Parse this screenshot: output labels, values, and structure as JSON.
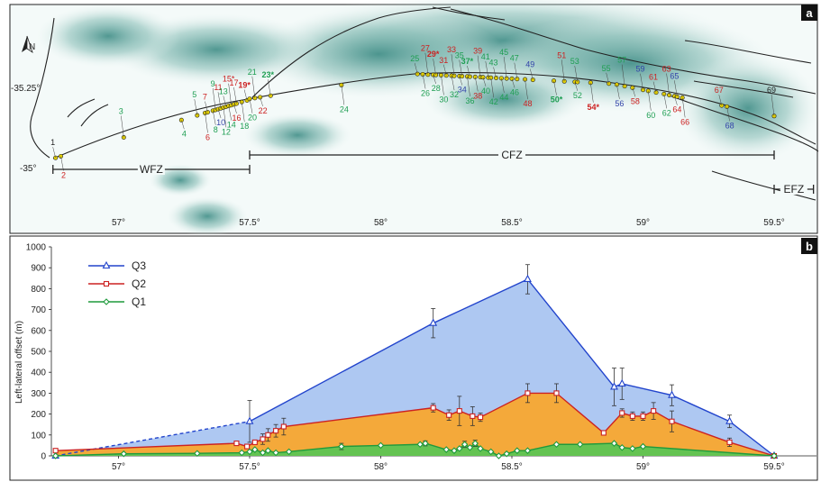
{
  "panel_a": {
    "label": "a",
    "lat_labels": [
      "-35.25°",
      "-35°"
    ],
    "lon_labels": [
      "57°",
      "57.5°",
      "58°",
      "58.5°",
      "59°",
      "59.5°"
    ],
    "zones": [
      {
        "name": "WFZ",
        "from": 56.75,
        "to": 57.5
      },
      {
        "name": "CFZ",
        "from": 57.5,
        "to": 59.5
      },
      {
        "name": "EFZ",
        "from": 59.5,
        "to": 59.65
      }
    ],
    "north_label": "N",
    "colors": {
      "green": "#1e9e52",
      "red": "#cc2222",
      "blue": "#3344aa",
      "dark": "#222222"
    },
    "site_labels": [
      {
        "t": "1",
        "c": "dark"
      },
      {
        "t": "2",
        "c": "red"
      },
      {
        "t": "3",
        "c": "green"
      },
      {
        "t": "4",
        "c": "green"
      },
      {
        "t": "5",
        "c": "green"
      },
      {
        "t": "6",
        "c": "red"
      },
      {
        "t": "7",
        "c": "red"
      },
      {
        "t": "8",
        "c": "green"
      },
      {
        "t": "9",
        "c": "green"
      },
      {
        "t": "10",
        "c": "blue"
      },
      {
        "t": "11",
        "c": "red"
      },
      {
        "t": "12",
        "c": "green"
      },
      {
        "t": "13",
        "c": "green"
      },
      {
        "t": "14",
        "c": "green"
      },
      {
        "t": "15*",
        "c": "red"
      },
      {
        "t": "16",
        "c": "red"
      },
      {
        "t": "17",
        "c": "red"
      },
      {
        "t": "18",
        "c": "green"
      },
      {
        "t": "19*",
        "c": "red",
        "b": true
      },
      {
        "t": "20",
        "c": "green"
      },
      {
        "t": "21",
        "c": "green"
      },
      {
        "t": "22",
        "c": "red"
      },
      {
        "t": "23*",
        "c": "green",
        "b": true
      },
      {
        "t": "24",
        "c": "green"
      },
      {
        "t": "25",
        "c": "green"
      },
      {
        "t": "26",
        "c": "green"
      },
      {
        "t": "27",
        "c": "red"
      },
      {
        "t": "28",
        "c": "green"
      },
      {
        "t": "29*",
        "c": "red",
        "b": true
      },
      {
        "t": "30",
        "c": "green"
      },
      {
        "t": "31",
        "c": "red"
      },
      {
        "t": "32",
        "c": "green"
      },
      {
        "t": "33",
        "c": "red"
      },
      {
        "t": "34",
        "c": "blue"
      },
      {
        "t": "35",
        "c": "green"
      },
      {
        "t": "36",
        "c": "green"
      },
      {
        "t": "37*",
        "c": "green",
        "b": true
      },
      {
        "t": "38",
        "c": "red"
      },
      {
        "t": "39",
        "c": "red"
      },
      {
        "t": "40",
        "c": "green"
      },
      {
        "t": "41",
        "c": "green"
      },
      {
        "t": "42",
        "c": "green"
      },
      {
        "t": "43",
        "c": "green"
      },
      {
        "t": "44",
        "c": "green"
      },
      {
        "t": "45",
        "c": "green"
      },
      {
        "t": "46",
        "c": "green"
      },
      {
        "t": "47",
        "c": "green"
      },
      {
        "t": "48",
        "c": "red"
      },
      {
        "t": "49",
        "c": "blue"
      },
      {
        "t": "50*",
        "c": "green",
        "b": true
      },
      {
        "t": "51",
        "c": "red"
      },
      {
        "t": "52",
        "c": "green"
      },
      {
        "t": "53",
        "c": "green"
      },
      {
        "t": "54*",
        "c": "red",
        "b": true
      },
      {
        "t": "55",
        "c": "green"
      },
      {
        "t": "56",
        "c": "blue"
      },
      {
        "t": "57",
        "c": "green"
      },
      {
        "t": "58",
        "c": "red"
      },
      {
        "t": "59",
        "c": "blue"
      },
      {
        "t": "60",
        "c": "green"
      },
      {
        "t": "61",
        "c": "red"
      },
      {
        "t": "62",
        "c": "green"
      },
      {
        "t": "63",
        "c": "red"
      },
      {
        "t": "64",
        "c": "red"
      },
      {
        "t": "65",
        "c": "blue"
      },
      {
        "t": "66",
        "c": "red"
      },
      {
        "t": "67",
        "c": "red"
      },
      {
        "t": "68",
        "c": "blue"
      },
      {
        "t": "69",
        "c": "dark"
      }
    ]
  },
  "chart_data": {
    "type": "area",
    "panel_label": "b",
    "ylabel": "Left-lateral offset (m)",
    "xlabel": "",
    "xlim": [
      56.75,
      59.65
    ],
    "ylim": [
      0,
      1000
    ],
    "x_ticks": [
      57,
      57.5,
      58,
      58.5,
      59,
      59.5
    ],
    "x_tick_labels": [
      "57°",
      "57.5°",
      "58°",
      "58.5°",
      "59°",
      "59.5°"
    ],
    "y_ticks": [
      0,
      100,
      200,
      300,
      400,
      500,
      600,
      700,
      800,
      900,
      1000
    ],
    "legend_position": "top-left",
    "series": [
      {
        "name": "Q3",
        "color": "#2244cc",
        "fill": "#aec8f2",
        "marker": "triangle",
        "points": [
          {
            "x": 56.76,
            "y": 0
          },
          {
            "x": 57.5,
            "y": 165,
            "e": 100,
            "dashed_before": true
          },
          {
            "x": 58.2,
            "y": 635,
            "e": 70
          },
          {
            "x": 58.56,
            "y": 845,
            "e": 70
          },
          {
            "x": 58.89,
            "y": 330,
            "e": 90
          },
          {
            "x": 58.92,
            "y": 345,
            "e": 75
          },
          {
            "x": 59.11,
            "y": 290,
            "e": 50
          },
          {
            "x": 59.33,
            "y": 165,
            "e": 30
          },
          {
            "x": 59.5,
            "y": 0
          }
        ]
      },
      {
        "name": "Q2",
        "color": "#cc2222",
        "fill": "#f4a93a",
        "marker": "square",
        "points": [
          {
            "x": 56.76,
            "y": 25
          },
          {
            "x": 57.45,
            "y": 60
          },
          {
            "x": 57.49,
            "y": 45
          },
          {
            "x": 57.52,
            "y": 65
          },
          {
            "x": 57.55,
            "y": 80,
            "e": 25
          },
          {
            "x": 57.57,
            "y": 100,
            "e": 30
          },
          {
            "x": 57.6,
            "y": 120,
            "e": 30
          },
          {
            "x": 57.63,
            "y": 140,
            "e": 40
          },
          {
            "x": 58.2,
            "y": 230,
            "e": 20
          },
          {
            "x": 58.26,
            "y": 195,
            "e": 25
          },
          {
            "x": 58.3,
            "y": 215,
            "e": 70
          },
          {
            "x": 58.35,
            "y": 190,
            "e": 45
          },
          {
            "x": 58.38,
            "y": 185,
            "e": 20
          },
          {
            "x": 58.56,
            "y": 300,
            "e": 45
          },
          {
            "x": 58.67,
            "y": 300,
            "e": 45
          },
          {
            "x": 58.85,
            "y": 110
          },
          {
            "x": 58.92,
            "y": 205,
            "e": 20
          },
          {
            "x": 58.96,
            "y": 190,
            "e": 20
          },
          {
            "x": 59.0,
            "y": 190,
            "e": 20
          },
          {
            "x": 59.04,
            "y": 215,
            "e": 40
          },
          {
            "x": 59.11,
            "y": 165,
            "e": 50
          },
          {
            "x": 59.33,
            "y": 65,
            "e": 20
          },
          {
            "x": 59.5,
            "y": 0
          }
        ]
      },
      {
        "name": "Q1",
        "color": "#1f9a3c",
        "fill": "#64c352",
        "marker": "diamond",
        "points": [
          {
            "x": 56.76,
            "y": 0
          },
          {
            "x": 57.02,
            "y": 10
          },
          {
            "x": 57.3,
            "y": 12
          },
          {
            "x": 57.47,
            "y": 15
          },
          {
            "x": 57.5,
            "y": 20
          },
          {
            "x": 57.52,
            "y": 30
          },
          {
            "x": 57.55,
            "y": 15
          },
          {
            "x": 57.57,
            "y": 25
          },
          {
            "x": 57.6,
            "y": 15
          },
          {
            "x": 57.65,
            "y": 20
          },
          {
            "x": 57.85,
            "y": 45,
            "e": 15
          },
          {
            "x": 58.0,
            "y": 50
          },
          {
            "x": 58.15,
            "y": 55
          },
          {
            "x": 58.17,
            "y": 60,
            "e": 12
          },
          {
            "x": 58.25,
            "y": 30
          },
          {
            "x": 58.28,
            "y": 25
          },
          {
            "x": 58.3,
            "y": 35
          },
          {
            "x": 58.32,
            "y": 55,
            "e": 15
          },
          {
            "x": 58.34,
            "y": 40
          },
          {
            "x": 58.36,
            "y": 60,
            "e": 15
          },
          {
            "x": 58.38,
            "y": 35
          },
          {
            "x": 58.42,
            "y": 20
          },
          {
            "x": 58.45,
            "y": 0
          },
          {
            "x": 58.48,
            "y": 10
          },
          {
            "x": 58.52,
            "y": 25
          },
          {
            "x": 58.56,
            "y": 25
          },
          {
            "x": 58.67,
            "y": 55
          },
          {
            "x": 58.76,
            "y": 55
          },
          {
            "x": 58.89,
            "y": 60
          },
          {
            "x": 58.92,
            "y": 40
          },
          {
            "x": 58.96,
            "y": 35
          },
          {
            "x": 59.0,
            "y": 45
          },
          {
            "x": 59.5,
            "y": 0
          }
        ]
      }
    ]
  }
}
